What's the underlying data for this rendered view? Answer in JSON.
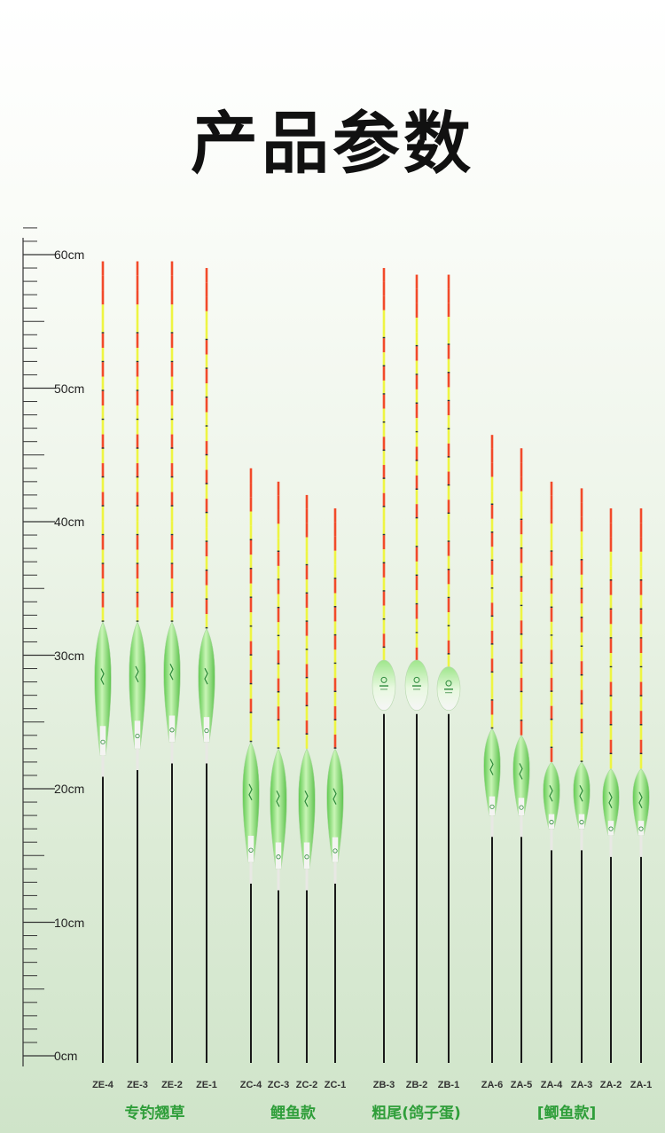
{
  "title": "产品参数",
  "scale": {
    "unit": "cm",
    "labels": [
      "60cm",
      "50cm",
      "40cm",
      "30cm",
      "20cm",
      "10cm",
      "0cm"
    ]
  },
  "colors": {
    "tip_red": "#f24a2a",
    "tip_yellow": "#eef542",
    "tip_dark": "#243040",
    "body_green": "#8fe07a",
    "group_green": "#2f9e3a",
    "stem": "#1a1a1a"
  },
  "chart_data": {
    "type": "bar",
    "ylabel": "cm",
    "ylim": [
      0,
      60
    ],
    "groups": [
      {
        "name": "专钓翘草",
        "items": [
          {
            "model": "ZE-4",
            "total_cm": 59.5,
            "body_top_cm": 32.5,
            "body_bottom_cm": 22.5,
            "shape": "spindle"
          },
          {
            "model": "ZE-3",
            "total_cm": 59.5,
            "body_top_cm": 32.5,
            "body_bottom_cm": 23.0,
            "shape": "spindle"
          },
          {
            "model": "ZE-2",
            "total_cm": 59.5,
            "body_top_cm": 32.5,
            "body_bottom_cm": 23.5,
            "shape": "spindle"
          },
          {
            "model": "ZE-1",
            "total_cm": 59.0,
            "body_top_cm": 32.0,
            "body_bottom_cm": 23.5,
            "shape": "spindle"
          }
        ]
      },
      {
        "name": "鲤鱼款",
        "items": [
          {
            "model": "ZC-4",
            "total_cm": 44.0,
            "body_top_cm": 23.5,
            "body_bottom_cm": 14.5,
            "shape": "spindle"
          },
          {
            "model": "ZC-3",
            "total_cm": 43.0,
            "body_top_cm": 23.0,
            "body_bottom_cm": 14.0,
            "shape": "spindle"
          },
          {
            "model": "ZC-2",
            "total_cm": 42.0,
            "body_top_cm": 23.0,
            "body_bottom_cm": 14.0,
            "shape": "spindle"
          },
          {
            "model": "ZC-1",
            "total_cm": 41.0,
            "body_top_cm": 23.0,
            "body_bottom_cm": 14.5,
            "shape": "spindle"
          }
        ]
      },
      {
        "name": "粗尾(鸽子蛋)",
        "items": [
          {
            "model": "ZB-3",
            "total_cm": 59.0,
            "body_top_cm": 29.5,
            "body_bottom_cm": 26.0,
            "shape": "egg"
          },
          {
            "model": "ZB-2",
            "total_cm": 58.5,
            "body_top_cm": 29.5,
            "body_bottom_cm": 26.0,
            "shape": "egg"
          },
          {
            "model": "ZB-1",
            "total_cm": 58.5,
            "body_top_cm": 29.0,
            "body_bottom_cm": 26.0,
            "shape": "egg"
          }
        ]
      },
      {
        "name": "[鲫鱼款]",
        "items": [
          {
            "model": "ZA-6",
            "total_cm": 46.5,
            "body_top_cm": 24.5,
            "body_bottom_cm": 18.0,
            "shape": "spindle"
          },
          {
            "model": "ZA-5",
            "total_cm": 45.5,
            "body_top_cm": 24.0,
            "body_bottom_cm": 18.0,
            "shape": "spindle"
          },
          {
            "model": "ZA-4",
            "total_cm": 43.0,
            "body_top_cm": 22.0,
            "body_bottom_cm": 17.0,
            "shape": "spindle"
          },
          {
            "model": "ZA-3",
            "total_cm": 42.5,
            "body_top_cm": 22.0,
            "body_bottom_cm": 17.0,
            "shape": "spindle"
          },
          {
            "model": "ZA-2",
            "total_cm": 41.0,
            "body_top_cm": 21.5,
            "body_bottom_cm": 16.5,
            "shape": "spindle"
          },
          {
            "model": "ZA-1",
            "total_cm": 41.0,
            "body_top_cm": 21.5,
            "body_bottom_cm": 16.5,
            "shape": "spindle"
          }
        ]
      }
    ]
  }
}
